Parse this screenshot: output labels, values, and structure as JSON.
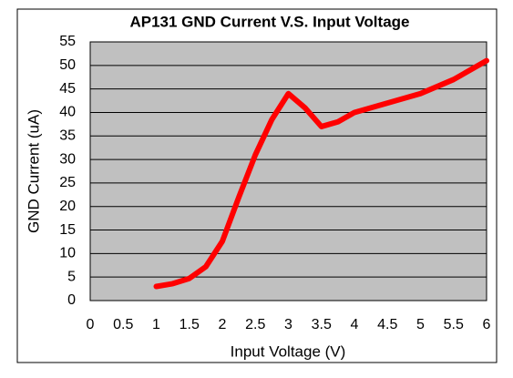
{
  "chart_data": {
    "type": "line",
    "title": "AP131 GND Current V.S. Input Voltage",
    "xlabel": "Input Voltage (V)",
    "ylabel": "GND Current (uA)",
    "x": [
      1,
      1.25,
      1.5,
      1.75,
      2,
      2.25,
      2.5,
      2.75,
      3,
      3.25,
      3.5,
      3.75,
      4,
      4.5,
      5,
      5.5,
      6
    ],
    "series": [
      {
        "name": "GND Current",
        "color": "#ff0000",
        "values": [
          3,
          3.6,
          4.7,
          7.2,
          12.6,
          22,
          31,
          38.5,
          44,
          41,
          37,
          38,
          40,
          42,
          44,
          47,
          51
        ]
      }
    ],
    "xlim": [
      0,
      6
    ],
    "xticks": [
      0,
      0.5,
      1,
      1.5,
      2,
      2.5,
      3,
      3.5,
      4,
      4.5,
      5,
      5.5,
      6
    ],
    "ylim": [
      0,
      55
    ],
    "yticks": [
      0,
      5,
      10,
      15,
      20,
      25,
      30,
      35,
      40,
      45,
      50,
      55
    ],
    "grid": true
  }
}
